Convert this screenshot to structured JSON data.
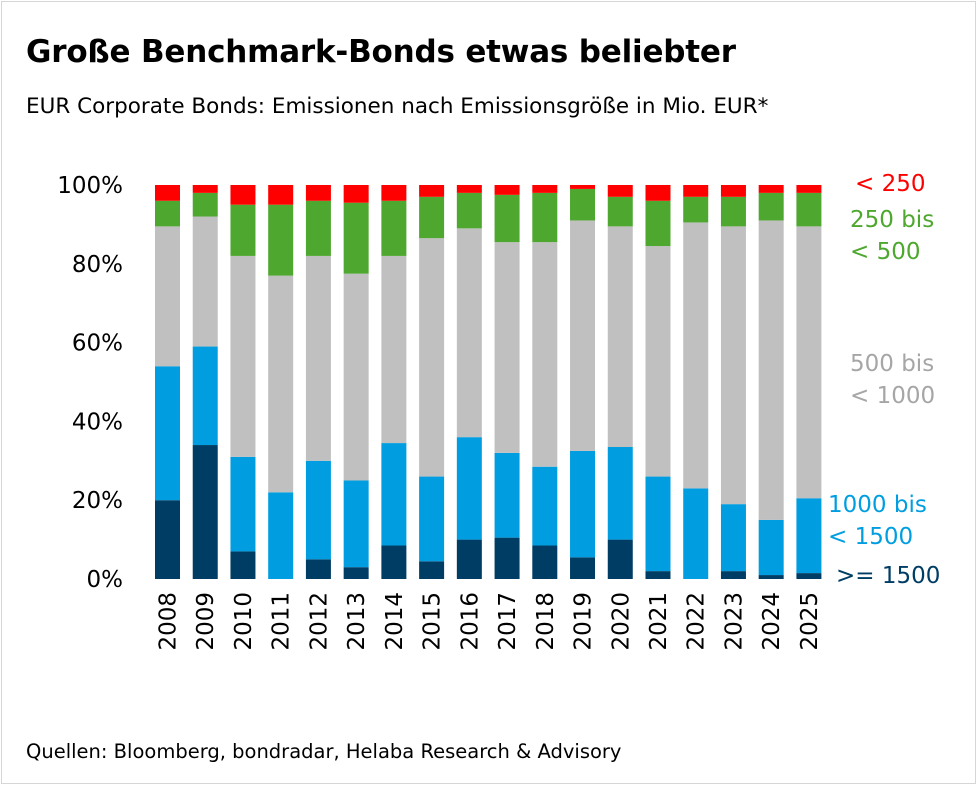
{
  "title": "Große Benchmark-Bonds etwas beliebter",
  "subtitle": "EUR Corporate Bonds: Emissionen nach Emissionsgröße in Mio. EUR*",
  "source": "Quellen: Bloomberg, bondradar, Helaba Research & Advisory",
  "chart_data": {
    "type": "bar",
    "stacked": true,
    "percent": true,
    "title": "Große Benchmark-Bonds etwas beliebter",
    "xlabel": "",
    "ylabel": "",
    "ylim": [
      0,
      100
    ],
    "yticks": [
      "0%",
      "20%",
      "40%",
      "60%",
      "80%",
      "100%"
    ],
    "categories": [
      "2008",
      "2009",
      "2010",
      "2011",
      "2012",
      "2013",
      "2014",
      "2015",
      "2016",
      "2017",
      "2018",
      "2019",
      "2020",
      "2021",
      "2022",
      "2023",
      "2024",
      "2025"
    ],
    "series": [
      {
        "name": ">= 1500",
        "label_lines": [
          ">= 1500"
        ],
        "color": "#003d64",
        "values": [
          20,
          34,
          7,
          0,
          5,
          3,
          8.5,
          4.5,
          10,
          10.5,
          8.5,
          5.5,
          10,
          2,
          0,
          2,
          1,
          1.5
        ]
      },
      {
        "name": "1000 bis < 1500",
        "label_lines": [
          "1000 bis",
          "< 1500"
        ],
        "color": "#009ee0",
        "values": [
          34,
          25,
          24,
          22,
          25,
          22,
          26,
          21.5,
          26,
          21.5,
          20,
          27,
          23.5,
          24,
          23,
          17,
          14,
          19
        ]
      },
      {
        "name": "500 bis < 1000",
        "label_lines": [
          "500 bis",
          "< 1000"
        ],
        "color": "#c0c0c0",
        "values": [
          35.5,
          33,
          51,
          55,
          52,
          52.5,
          47.5,
          60.5,
          53,
          53.5,
          57,
          58.5,
          56,
          58.5,
          67.5,
          70.5,
          76,
          69
        ]
      },
      {
        "name": "250 bis < 500",
        "label_lines": [
          "250 bis",
          "< 500"
        ],
        "color": "#4ea72e",
        "values": [
          6.5,
          6,
          13,
          18,
          14,
          18,
          14,
          10.5,
          9,
          12,
          12.5,
          8,
          7.5,
          11.5,
          6.5,
          7.5,
          7,
          8.5
        ]
      },
      {
        "name": "< 250",
        "label_lines": [
          "< 250"
        ],
        "color": "#ff0000",
        "values": [
          4,
          2,
          5,
          5,
          4,
          4.5,
          4,
          3,
          2,
          2.5,
          2,
          1,
          3,
          4,
          3,
          3,
          2,
          2
        ]
      }
    ],
    "legend": "right",
    "grid": false
  }
}
